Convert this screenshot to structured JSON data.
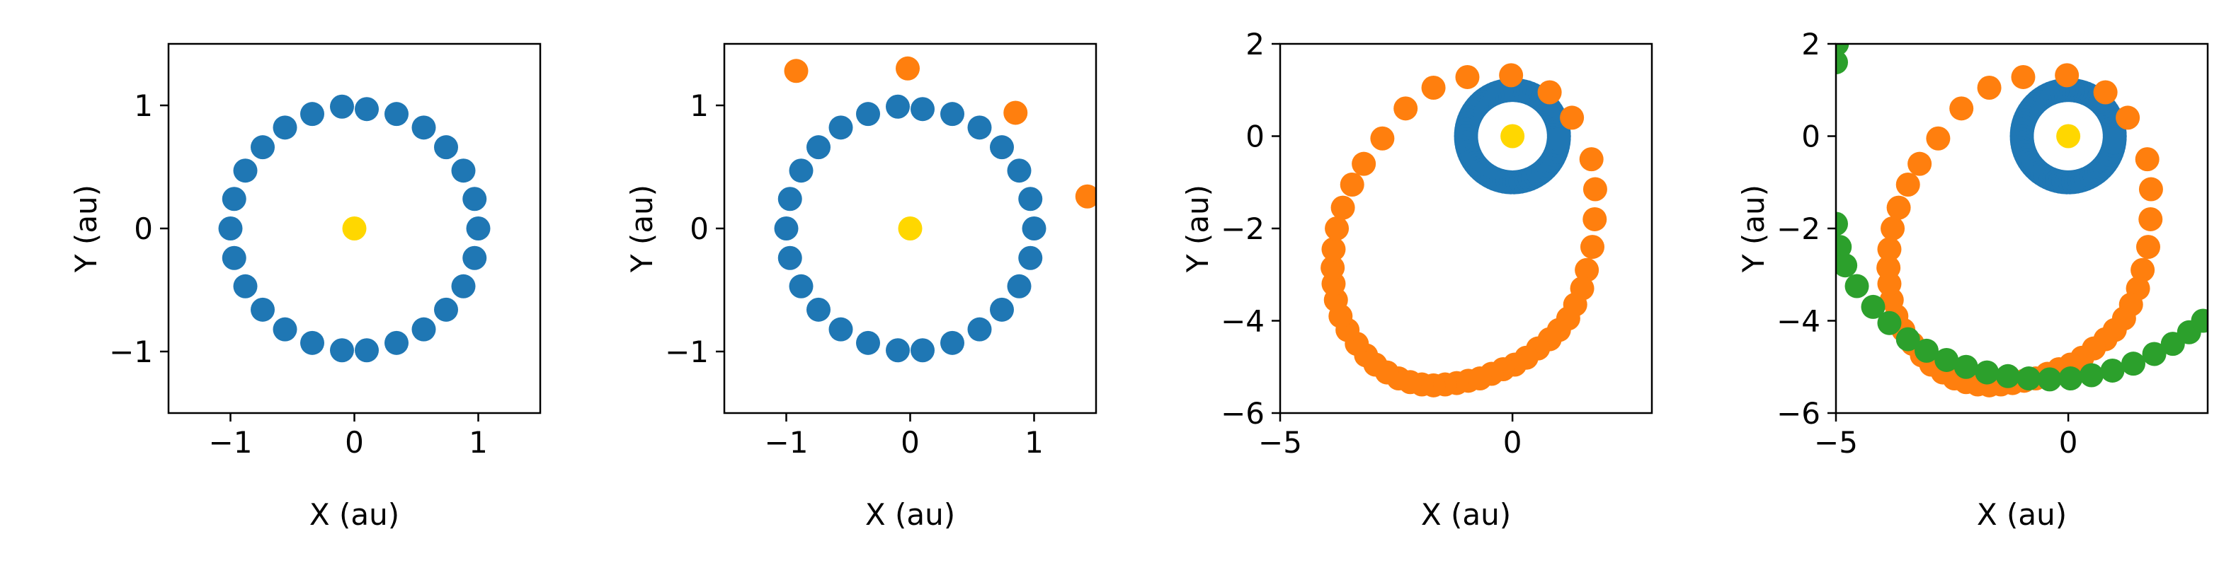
{
  "colors": {
    "sun": "#ffd700",
    "earth": "#1f77b4",
    "comet": "#ff7f0e",
    "third": "#2ca02c",
    "axes": "#000000"
  },
  "chart_data": [
    {
      "type": "scatter",
      "xlabel": "X (au)",
      "ylabel": "Y (au)",
      "xlim": [
        -1.5,
        1.5
      ],
      "ylim": [
        -1.5,
        1.5
      ],
      "xticks": [
        -1,
        0,
        1
      ],
      "yticks": [
        -1,
        0,
        1
      ],
      "grid": false,
      "series": [
        {
          "color_key": "earth",
          "points": [
            [
              0.1,
              0.97
            ],
            [
              0.34,
              0.93
            ],
            [
              0.56,
              0.82
            ],
            [
              0.74,
              0.66
            ],
            [
              0.88,
              0.47
            ],
            [
              0.97,
              0.24
            ],
            [
              1.0,
              0.0
            ],
            [
              0.97,
              -0.24
            ],
            [
              0.88,
              -0.47
            ],
            [
              0.74,
              -0.66
            ],
            [
              0.56,
              -0.82
            ],
            [
              0.34,
              -0.93
            ],
            [
              0.1,
              -0.99
            ],
            [
              -0.1,
              -0.99
            ],
            [
              -0.34,
              -0.93
            ],
            [
              -0.56,
              -0.82
            ],
            [
              -0.74,
              -0.66
            ],
            [
              -0.88,
              -0.47
            ],
            [
              -0.97,
              -0.24
            ],
            [
              -1.0,
              0.0
            ],
            [
              -0.97,
              0.24
            ],
            [
              -0.88,
              0.47
            ],
            [
              -0.74,
              0.66
            ],
            [
              -0.56,
              0.82
            ],
            [
              -0.34,
              0.93
            ],
            [
              -0.1,
              0.99
            ]
          ]
        },
        {
          "color_key": "sun",
          "points": [
            [
              0,
              0
            ]
          ]
        }
      ]
    },
    {
      "type": "scatter",
      "xlabel": "X (au)",
      "ylabel": "Y (au)",
      "xlim": [
        -1.5,
        1.5
      ],
      "ylim": [
        -1.5,
        1.5
      ],
      "xticks": [
        -1,
        0,
        1
      ],
      "yticks": [
        -1,
        0,
        1
      ],
      "grid": false,
      "series": [
        {
          "color_key": "earth",
          "points": [
            [
              0.1,
              0.97
            ],
            [
              0.34,
              0.93
            ],
            [
              0.56,
              0.82
            ],
            [
              0.74,
              0.66
            ],
            [
              0.88,
              0.47
            ],
            [
              0.97,
              0.24
            ],
            [
              1.0,
              0.0
            ],
            [
              0.97,
              -0.24
            ],
            [
              0.88,
              -0.47
            ],
            [
              0.74,
              -0.66
            ],
            [
              0.56,
              -0.82
            ],
            [
              0.34,
              -0.93
            ],
            [
              0.1,
              -0.99
            ],
            [
              -0.1,
              -0.99
            ],
            [
              -0.34,
              -0.93
            ],
            [
              -0.56,
              -0.82
            ],
            [
              -0.74,
              -0.66
            ],
            [
              -0.88,
              -0.47
            ],
            [
              -0.97,
              -0.24
            ],
            [
              -1.0,
              0.0
            ],
            [
              -0.97,
              0.24
            ],
            [
              -0.88,
              0.47
            ],
            [
              -0.74,
              0.66
            ],
            [
              -0.56,
              0.82
            ],
            [
              -0.34,
              0.93
            ],
            [
              -0.1,
              0.99
            ]
          ]
        },
        {
          "color_key": "comet",
          "points": [
            [
              -0.92,
              1.28
            ],
            [
              -0.02,
              1.3
            ],
            [
              0.85,
              0.94
            ],
            [
              1.43,
              0.26
            ]
          ]
        },
        {
          "color_key": "sun",
          "points": [
            [
              0,
              0
            ]
          ]
        }
      ]
    },
    {
      "type": "scatter",
      "xlabel": "X (au)",
      "ylabel": "Y (au)",
      "xlim": [
        -5,
        3
      ],
      "ylim": [
        -6,
        2
      ],
      "xticks": [
        -5,
        0
      ],
      "yticks": [
        -6,
        -4,
        -2,
        0,
        2
      ],
      "grid": false,
      "series": [
        {
          "color_key": "earth",
          "orbit": {
            "cx": 0,
            "cy": 0,
            "r": 1.0,
            "count": 90
          }
        },
        {
          "color_key": "comet",
          "points": [
            [
              -0.97,
              1.28
            ],
            [
              -0.03,
              1.32
            ],
            [
              0.8,
              0.95
            ],
            [
              1.28,
              0.4
            ],
            [
              1.7,
              -0.5
            ],
            [
              1.78,
              -1.15
            ],
            [
              1.77,
              -1.8
            ],
            [
              1.72,
              -2.4
            ],
            [
              1.6,
              -2.9
            ],
            [
              1.5,
              -3.3
            ],
            [
              1.35,
              -3.65
            ],
            [
              1.2,
              -3.95
            ],
            [
              1.0,
              -4.2
            ],
            [
              0.8,
              -4.4
            ],
            [
              0.55,
              -4.6
            ],
            [
              0.3,
              -4.8
            ],
            [
              0.05,
              -4.95
            ],
            [
              -0.2,
              -5.05
            ],
            [
              -0.45,
              -5.15
            ],
            [
              -0.7,
              -5.25
            ],
            [
              -0.95,
              -5.3
            ],
            [
              -1.2,
              -5.35
            ],
            [
              -1.45,
              -5.38
            ],
            [
              -1.7,
              -5.4
            ],
            [
              -1.95,
              -5.38
            ],
            [
              -2.2,
              -5.33
            ],
            [
              -2.45,
              -5.25
            ],
            [
              -2.7,
              -5.12
            ],
            [
              -2.95,
              -4.95
            ],
            [
              -3.15,
              -4.75
            ],
            [
              -3.35,
              -4.5
            ],
            [
              -3.55,
              -4.2
            ],
            [
              -3.7,
              -3.9
            ],
            [
              -3.8,
              -3.55
            ],
            [
              -3.85,
              -3.2
            ],
            [
              -3.87,
              -2.85
            ],
            [
              -3.85,
              -2.45
            ],
            [
              -3.78,
              -2.0
            ],
            [
              -3.65,
              -1.55
            ],
            [
              -3.45,
              -1.05
            ],
            [
              -3.2,
              -0.6
            ],
            [
              -2.8,
              -0.05
            ],
            [
              -2.3,
              0.6
            ],
            [
              -1.7,
              1.05
            ]
          ]
        },
        {
          "color_key": "sun",
          "points": [
            [
              0,
              0
            ]
          ]
        }
      ]
    },
    {
      "type": "scatter",
      "xlabel": "X (au)",
      "ylabel": "Y (au)",
      "xlim": [
        -5,
        3
      ],
      "ylim": [
        -6,
        2
      ],
      "xticks": [
        -5,
        0
      ],
      "yticks": [
        -6,
        -4,
        -2,
        0,
        2
      ],
      "grid": false,
      "series": [
        {
          "color_key": "earth",
          "orbit": {
            "cx": 0,
            "cy": 0,
            "r": 1.0,
            "count": 90
          }
        },
        {
          "color_key": "comet",
          "points": [
            [
              -0.97,
              1.28
            ],
            [
              -0.03,
              1.32
            ],
            [
              0.8,
              0.95
            ],
            [
              1.28,
              0.4
            ],
            [
              1.7,
              -0.5
            ],
            [
              1.78,
              -1.15
            ],
            [
              1.77,
              -1.8
            ],
            [
              1.72,
              -2.4
            ],
            [
              1.6,
              -2.9
            ],
            [
              1.5,
              -3.3
            ],
            [
              1.35,
              -3.65
            ],
            [
              1.2,
              -3.95
            ],
            [
              1.0,
              -4.2
            ],
            [
              0.8,
              -4.4
            ],
            [
              0.55,
              -4.6
            ],
            [
              0.3,
              -4.8
            ],
            [
              0.05,
              -4.95
            ],
            [
              -0.2,
              -5.05
            ],
            [
              -0.45,
              -5.15
            ],
            [
              -0.7,
              -5.25
            ],
            [
              -0.95,
              -5.3
            ],
            [
              -1.2,
              -5.35
            ],
            [
              -1.45,
              -5.38
            ],
            [
              -1.7,
              -5.4
            ],
            [
              -1.95,
              -5.38
            ],
            [
              -2.2,
              -5.33
            ],
            [
              -2.45,
              -5.25
            ],
            [
              -2.7,
              -5.12
            ],
            [
              -2.95,
              -4.95
            ],
            [
              -3.15,
              -4.75
            ],
            [
              -3.35,
              -4.5
            ],
            [
              -3.55,
              -4.2
            ],
            [
              -3.7,
              -3.9
            ],
            [
              -3.8,
              -3.55
            ],
            [
              -3.85,
              -3.2
            ],
            [
              -3.87,
              -2.85
            ],
            [
              -3.85,
              -2.45
            ],
            [
              -3.78,
              -2.0
            ],
            [
              -3.65,
              -1.55
            ],
            [
              -3.45,
              -1.05
            ],
            [
              -3.2,
              -0.6
            ],
            [
              -2.8,
              -0.05
            ],
            [
              -2.3,
              0.6
            ],
            [
              -1.7,
              1.05
            ]
          ]
        },
        {
          "color_key": "third",
          "points": [
            [
              -5.0,
              1.6
            ],
            [
              -4.98,
              2.0
            ],
            [
              -5.0,
              -1.9
            ],
            [
              -4.92,
              -2.4
            ],
            [
              -4.8,
              -2.8
            ],
            [
              -4.55,
              -3.25
            ],
            [
              -4.2,
              -3.7
            ],
            [
              -3.85,
              -4.05
            ],
            [
              -3.45,
              -4.4
            ],
            [
              -3.05,
              -4.65
            ],
            [
              -2.62,
              -4.85
            ],
            [
              -2.2,
              -5.0
            ],
            [
              -1.75,
              -5.12
            ],
            [
              -1.3,
              -5.2
            ],
            [
              -0.85,
              -5.25
            ],
            [
              -0.4,
              -5.27
            ],
            [
              0.05,
              -5.25
            ],
            [
              0.5,
              -5.18
            ],
            [
              0.95,
              -5.08
            ],
            [
              1.4,
              -4.93
            ],
            [
              1.85,
              -4.72
            ],
            [
              2.25,
              -4.5
            ],
            [
              2.6,
              -4.25
            ],
            [
              2.9,
              -4.0
            ]
          ]
        },
        {
          "color_key": "sun",
          "points": [
            [
              0,
              0
            ]
          ]
        }
      ]
    }
  ]
}
